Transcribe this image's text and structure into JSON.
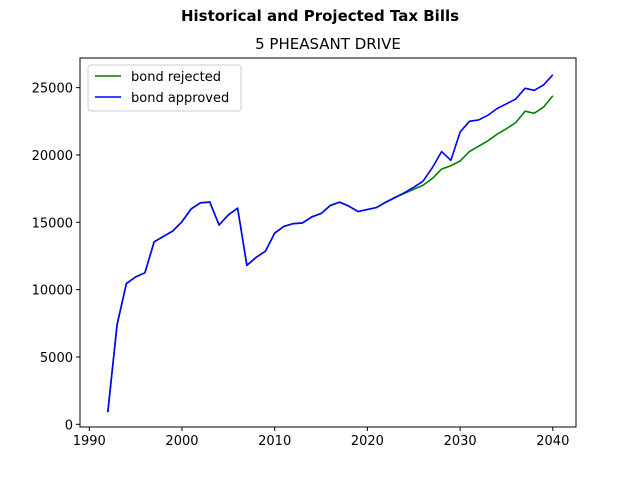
{
  "figure": {
    "suptitle": "Historical and Projected Tax Bills",
    "title": "5 PHEASANT DRIVE"
  },
  "chart_data": {
    "type": "line",
    "title": "5 PHEASANT DRIVE",
    "suptitle": "Historical and Projected Tax Bills",
    "xlabel": "",
    "ylabel": "",
    "xlim": [
      1989,
      2042.5
    ],
    "ylim": [
      -200,
      27200
    ],
    "xticks": [
      1990,
      2000,
      2010,
      2020,
      2030,
      2040
    ],
    "yticks": [
      0,
      5000,
      10000,
      15000,
      20000,
      25000
    ],
    "grid": false,
    "legend": {
      "placement": "upper-left",
      "entries": [
        "bond rejected",
        "bond approved"
      ]
    },
    "x": [
      1992,
      1993,
      1994,
      1995,
      1996,
      1997,
      1998,
      1999,
      2000,
      2001,
      2002,
      2003,
      2004,
      2005,
      2006,
      2007,
      2008,
      2009,
      2010,
      2011,
      2012,
      2013,
      2014,
      2015,
      2016,
      2017,
      2018,
      2019,
      2020,
      2021,
      2022,
      2023,
      2024,
      2025,
      2026,
      2027,
      2028,
      2029,
      2030,
      2031,
      2032,
      2033,
      2034,
      2035,
      2036,
      2037,
      2038,
      2039,
      2040
    ],
    "series": [
      {
        "name": "bond rejected",
        "color": "#008000",
        "values": [
          900,
          7400,
          10450,
          10950,
          11250,
          13550,
          13950,
          14350,
          15050,
          16000,
          16450,
          16500,
          14800,
          15550,
          16050,
          11800,
          12400,
          12850,
          14200,
          14700,
          14900,
          14950,
          15400,
          15650,
          16250,
          16500,
          16200,
          15800,
          15950,
          16100,
          16500,
          16850,
          17150,
          17450,
          17750,
          18250,
          18950,
          19200,
          19550,
          20250,
          20650,
          21050,
          21550,
          21950,
          22400,
          23250,
          23100,
          23550,
          24400
        ]
      },
      {
        "name": "bond approved",
        "color": "#0000ff",
        "values": [
          900,
          7400,
          10450,
          10950,
          11250,
          13550,
          13950,
          14350,
          15050,
          16000,
          16450,
          16500,
          14800,
          15550,
          16050,
          11800,
          12400,
          12850,
          14200,
          14700,
          14900,
          14950,
          15400,
          15650,
          16250,
          16500,
          16200,
          15800,
          15950,
          16100,
          16500,
          16850,
          17200,
          17600,
          18050,
          19050,
          20250,
          19600,
          21700,
          22500,
          22600,
          22950,
          23450,
          23800,
          24150,
          24950,
          24800,
          25200,
          25950
        ]
      }
    ]
  }
}
